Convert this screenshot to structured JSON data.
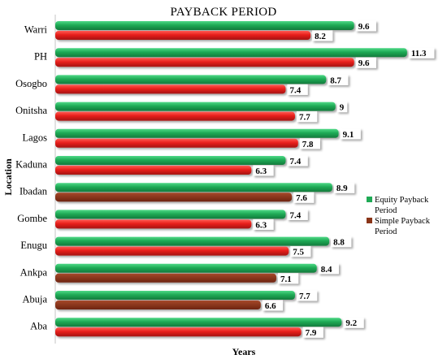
{
  "chart_data": {
    "type": "bar",
    "orientation": "horizontal",
    "title": "PAYBACK PERIOD",
    "xlabel": "Years",
    "ylabel": "Location",
    "categories": [
      "Warri",
      "PH",
      "Osogbo",
      "Onitsha",
      "Lagos",
      "Kaduna",
      "Ibadan",
      "Gombe",
      "Enugu",
      "Ankpa",
      "Abuja",
      "Aba"
    ],
    "series": [
      {
        "name": "Equity Payback Period",
        "values": [
          9.6,
          11.3,
          8.7,
          9,
          9.1,
          7.4,
          8.9,
          7.4,
          8.8,
          8.4,
          7.7,
          9.2
        ],
        "color": "#1faa55"
      },
      {
        "name": "Simple Payback Period",
        "values": [
          8.2,
          9.6,
          7.4,
          7.7,
          7.8,
          6.3,
          7.6,
          6.3,
          7.5,
          7.1,
          6.6,
          7.9
        ],
        "color": "#e8201c"
      }
    ],
    "xlim": [
      0,
      11.8
    ],
    "grid": false,
    "legend_position": "right"
  }
}
